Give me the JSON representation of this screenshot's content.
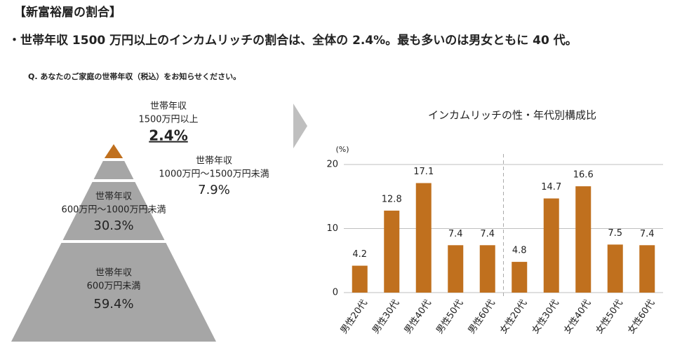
{
  "header": {
    "title": "【新富裕層の割合】",
    "summary": "・世帯年収 1500 万円以上のインカムリッチの割合は、全体の 2.4%。最も多いのは男女ともに 40 代。",
    "question": "Q. あなたのご家庭の世帯年収（税込）をお知らせください。"
  },
  "chart_data": [
    {
      "type": "pyramid",
      "categories": [
        [
          "世帯年収",
          "1500万円以上"
        ],
        [
          "世帯年収",
          "1000万円～1500万円未満"
        ],
        [
          "世帯年収",
          "600万円～1000万円未満"
        ],
        [
          "世帯年収",
          "600万円未満"
        ]
      ],
      "values": [
        2.4,
        7.9,
        30.3,
        59.4
      ],
      "value_labels": [
        "2.4%",
        "7.9%",
        "30.3%",
        "59.4%"
      ],
      "colors": [
        "#c0701e",
        "#a6a6a6",
        "#a6a6a6",
        "#a6a6a6"
      ]
    },
    {
      "type": "bar",
      "title": "インカムリッチの性・年代別構成比",
      "ylabel": "(%)",
      "categories": [
        "男性20代",
        "男性30代",
        "男性40代",
        "男性50代",
        "男性60代",
        "女性20代",
        "女性30代",
        "女性40代",
        "女性50代",
        "女性60代"
      ],
      "values": [
        4.2,
        12.8,
        17.1,
        7.4,
        7.4,
        4.8,
        14.7,
        16.6,
        7.5,
        7.4
      ],
      "color": "#c0701e",
      "ylim": [
        0,
        20
      ],
      "yticks": [
        0,
        10,
        20
      ],
      "grid": true
    }
  ]
}
